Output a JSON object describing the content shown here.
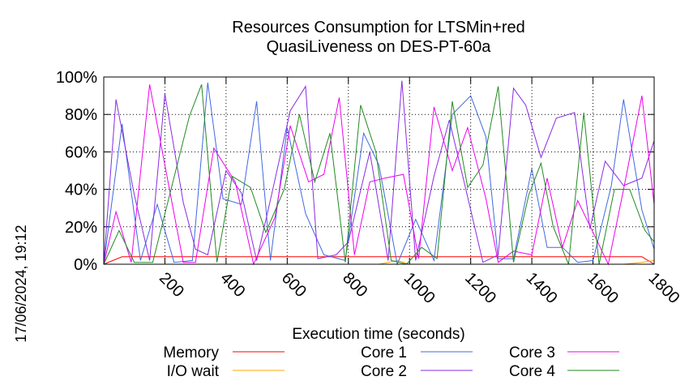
{
  "chart_data": {
    "type": "line",
    "title_line1": "Resources Consumption for LTSMin+red",
    "title_line2": "QuasiLiveness on DES-PT-60a",
    "xlabel": "Execution time (seconds)",
    "ylabel": "",
    "xlim": [
      0,
      1800
    ],
    "ylim": [
      0,
      100
    ],
    "x_ticks": [
      200,
      400,
      600,
      800,
      1000,
      1200,
      1400,
      1600,
      1800
    ],
    "x_tick_labels": [
      "200",
      "400",
      "600",
      "800",
      "1000",
      "1200",
      "1400",
      "1600",
      "1800"
    ],
    "y_ticks": [
      0,
      20,
      40,
      60,
      80,
      100
    ],
    "y_tick_labels": [
      "0%",
      "20%",
      "40%",
      "60%",
      "80%",
      "100%"
    ],
    "grid": true,
    "legend_position": "bottom",
    "timestamp": "17/06/2024, 19:12",
    "series": [
      {
        "name": "Memory",
        "color": "#ff0000",
        "x": [
          0,
          60,
          200,
          400,
          600,
          800,
          1000,
          1200,
          1400,
          1600,
          1760,
          1800
        ],
        "y": [
          0,
          4,
          4,
          4,
          4,
          4,
          4,
          4,
          4,
          4,
          4,
          0
        ]
      },
      {
        "name": "I/O wait",
        "color": "#ffa500",
        "x": [
          0,
          100,
          300,
          500,
          700,
          900,
          960,
          1000,
          1050,
          1200,
          1500,
          1700,
          1760,
          1800
        ],
        "y": [
          0,
          0,
          0,
          0,
          0,
          0,
          2,
          0,
          0,
          0,
          0,
          0,
          1,
          2
        ]
      },
      {
        "name": "Core 1",
        "color": "#4169e1",
        "x": [
          0,
          60,
          120,
          175,
          230,
          290,
          340,
          390,
          450,
          500,
          545,
          600,
          660,
          720,
          790,
          850,
          900,
          960,
          1020,
          1080,
          1140,
          1200,
          1250,
          1290,
          1340,
          1400,
          1450,
          1500,
          1550,
          1600,
          1660,
          1700,
          1760,
          1800
        ],
        "y": [
          0,
          75,
          2,
          32,
          1,
          2,
          97,
          35,
          32,
          87,
          2,
          73,
          27,
          5,
          2,
          70,
          53,
          0,
          24,
          2,
          80,
          90,
          68,
          3,
          3,
          51,
          9,
          9,
          1,
          2,
          42,
          88,
          29,
          8
        ]
      },
      {
        "name": "Core 2",
        "color": "#8a2be2",
        "x": [
          0,
          40,
          100,
          150,
          200,
          260,
          300,
          340,
          400,
          450,
          500,
          550,
          610,
          660,
          700,
          760,
          800,
          870,
          930,
          975,
          1020,
          1080,
          1130,
          1180,
          1240,
          1290,
          1340,
          1380,
          1430,
          1480,
          1540,
          1590,
          1640,
          1700,
          1760,
          1800
        ],
        "y": [
          0,
          88,
          37,
          2,
          91,
          33,
          8,
          5,
          50,
          38,
          2,
          38,
          82,
          95,
          3,
          5,
          12,
          60,
          2,
          98,
          2,
          47,
          77,
          43,
          1,
          5,
          94,
          85,
          57,
          78,
          81,
          19,
          55,
          42,
          46,
          66
        ]
      },
      {
        "name": "Core 3",
        "color": "#ee00ee",
        "x": [
          0,
          40,
          90,
          150,
          200,
          260,
          300,
          360,
          430,
          490,
          560,
          610,
          670,
          720,
          770,
          820,
          870,
          920,
          980,
          1030,
          1080,
          1140,
          1190,
          1250,
          1290,
          1340,
          1400,
          1450,
          1500,
          1550,
          1600,
          1650,
          1700,
          1760,
          1800
        ],
        "y": [
          0,
          28,
          1,
          96,
          53,
          1,
          1,
          62,
          44,
          0,
          25,
          74,
          44,
          48,
          89,
          5,
          44,
          46,
          48,
          3,
          84,
          50,
          73,
          35,
          1,
          7,
          5,
          46,
          9,
          34,
          17,
          0,
          40,
          90,
          32
        ]
      },
      {
        "name": "Core 4",
        "color": "#228b22",
        "x": [
          0,
          50,
          100,
          160,
          220,
          280,
          320,
          370,
          420,
          480,
          530,
          590,
          640,
          690,
          740,
          790,
          840,
          890,
          940,
          990,
          1040,
          1090,
          1140,
          1190,
          1240,
          1290,
          1340,
          1390,
          1430,
          1470,
          1520,
          1570,
          1620,
          1670,
          1720,
          1770,
          1800
        ],
        "y": [
          0,
          18,
          1,
          1,
          40,
          79,
          96,
          1,
          47,
          41,
          17,
          40,
          80,
          44,
          70,
          1,
          85,
          60,
          2,
          0,
          9,
          3,
          87,
          41,
          53,
          95,
          1,
          37,
          54,
          20,
          0,
          81,
          0,
          40,
          40,
          18,
          12
        ]
      }
    ]
  }
}
